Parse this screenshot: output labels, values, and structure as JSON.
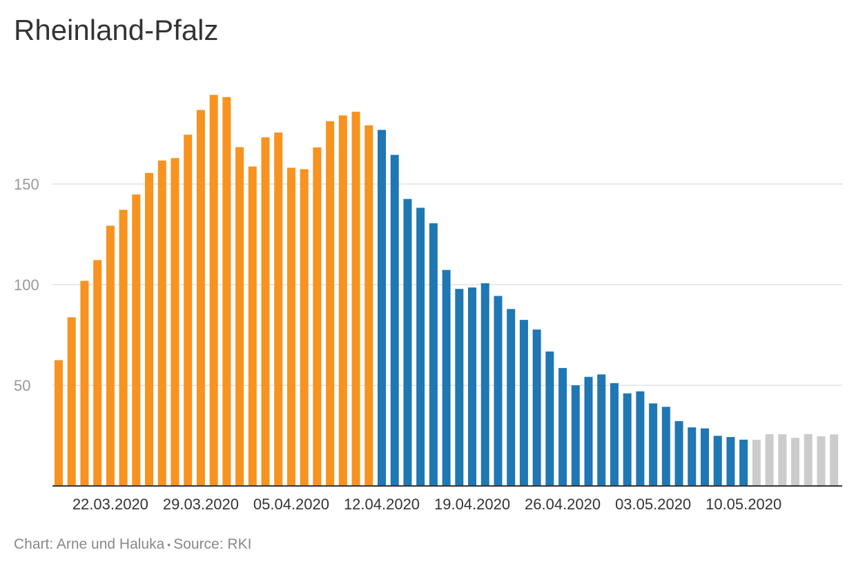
{
  "title": "Rheinland-Pfalz",
  "footer": {
    "credit": "Chart: Arne und Haluka",
    "separator": "•",
    "source": "Source: RKI"
  },
  "chart_data": {
    "type": "bar",
    "title": "Rheinland-Pfalz",
    "xlabel": "",
    "ylabel": "",
    "ylim": [
      0,
      200
    ],
    "y_ticks": [
      50,
      100,
      150
    ],
    "grid": true,
    "legend": "none",
    "x_tick_labels": [
      {
        "index": 4,
        "label": "22.03.2020"
      },
      {
        "index": 11,
        "label": "29.03.2020"
      },
      {
        "index": 18,
        "label": "05.04.2020"
      },
      {
        "index": 25,
        "label": "12.04.2020"
      },
      {
        "index": 32,
        "label": "19.04.2020"
      },
      {
        "index": 39,
        "label": "26.04.2020"
      },
      {
        "index": 46,
        "label": "03.05.2020"
      },
      {
        "index": 53,
        "label": "10.05.2020"
      }
    ],
    "categories": [
      "18.03.2020",
      "19.03.2020",
      "20.03.2020",
      "21.03.2020",
      "22.03.2020",
      "23.03.2020",
      "24.03.2020",
      "25.03.2020",
      "26.03.2020",
      "27.03.2020",
      "28.03.2020",
      "29.03.2020",
      "30.03.2020",
      "31.03.2020",
      "01.04.2020",
      "02.04.2020",
      "03.04.2020",
      "04.04.2020",
      "05.04.2020",
      "06.04.2020",
      "07.04.2020",
      "08.04.2020",
      "09.04.2020",
      "10.04.2020",
      "11.04.2020",
      "12.04.2020",
      "13.04.2020",
      "14.04.2020",
      "15.04.2020",
      "16.04.2020",
      "17.04.2020",
      "18.04.2020",
      "19.04.2020",
      "20.04.2020",
      "21.04.2020",
      "22.04.2020",
      "23.04.2020",
      "24.04.2020",
      "25.04.2020",
      "26.04.2020",
      "27.04.2020",
      "28.04.2020",
      "29.04.2020",
      "30.04.2020",
      "01.05.2020",
      "02.05.2020",
      "03.05.2020",
      "04.05.2020",
      "05.05.2020",
      "06.05.2020",
      "07.05.2020",
      "08.05.2020",
      "09.05.2020",
      "10.05.2020",
      "11.05.2020",
      "12.05.2020",
      "13.05.2020",
      "14.05.2020",
      "15.05.2020",
      "16.05.2020",
      "17.05.2020"
    ],
    "values": [
      62.5,
      83.8,
      101.9,
      112.2,
      129.3,
      137.2,
      144.8,
      155.5,
      161.7,
      162.9,
      174.5,
      186.8,
      194.3,
      193.2,
      168.3,
      158.7,
      173.2,
      175.6,
      158.1,
      157.4,
      168.2,
      181.2,
      184.1,
      185.9,
      179.2,
      176.9,
      164.5,
      142.6,
      138.2,
      130.5,
      107.3,
      97.9,
      98.6,
      100.7,
      94.4,
      87.9,
      82.5,
      77.7,
      66.8,
      58.6,
      50.0,
      54.2,
      55.4,
      51.1,
      46.0,
      47.0,
      41.0,
      39.3,
      32.2,
      29.1,
      28.6,
      24.9,
      24.3,
      23.0,
      22.9,
      25.7,
      25.7,
      23.9,
      25.8,
      24.7,
      25.6
    ],
    "colors": [
      "#f7931e",
      "#1f77b4",
      "#cccccc"
    ],
    "segments": [
      {
        "from": 0,
        "to": 24,
        "color": "#f7931e"
      },
      {
        "from": 25,
        "to": 53,
        "color": "#1f77b4"
      },
      {
        "from": 54,
        "to": 60,
        "color": "#cccccc"
      }
    ]
  }
}
